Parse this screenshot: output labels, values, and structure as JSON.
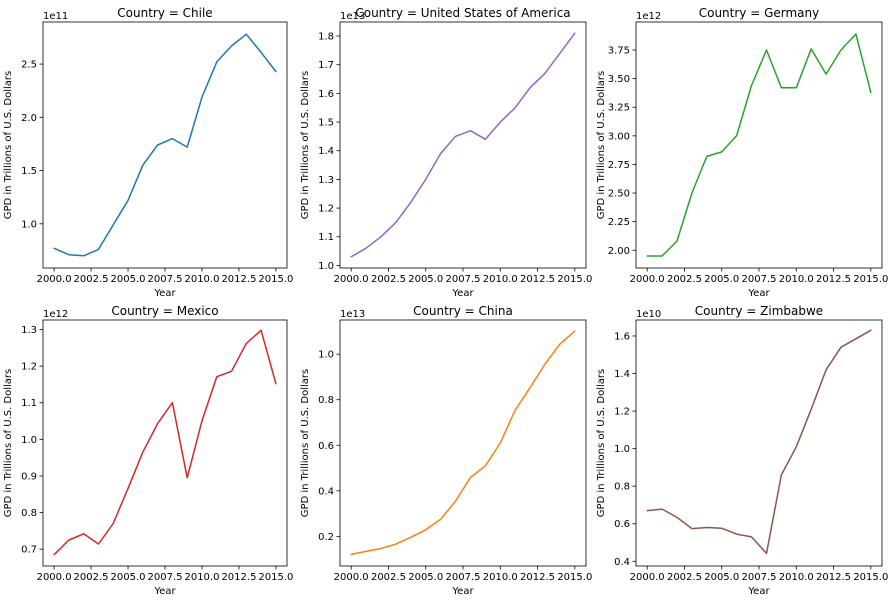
{
  "figure": {
    "background": "#ffffff"
  },
  "chart_data": [
    {
      "type": "line",
      "title": "Country = Chile",
      "xlabel": "Year",
      "ylabel": "GPD in Trillions of U.S. Dollars",
      "y_offset_label": "1e11",
      "color": "#1f77b4",
      "xlim": [
        1999.25,
        2015.75
      ],
      "ylim": [
        0.585,
        2.895
      ],
      "x_ticks": [
        2000,
        2002.5,
        2005,
        2007.5,
        2010,
        2012.5,
        2015
      ],
      "x_tick_labels": [
        "2000.0",
        "2002.5",
        "2005.0",
        "2007.5",
        "2010.0",
        "2012.5",
        "2015.0"
      ],
      "y_ticks": [
        1.0,
        1.5,
        2.0,
        2.5
      ],
      "y_tick_labels": [
        "1.0",
        "1.5",
        "2.0",
        "2.5"
      ],
      "x": [
        2000,
        2001,
        2002,
        2003,
        2004,
        2005,
        2006,
        2007,
        2008,
        2009,
        2010,
        2011,
        2012,
        2013,
        2014,
        2015
      ],
      "y": [
        0.77,
        0.71,
        0.7,
        0.76,
        0.99,
        1.22,
        1.55,
        1.74,
        1.8,
        1.72,
        2.19,
        2.52,
        2.67,
        2.78,
        2.61,
        2.43
      ]
    },
    {
      "type": "line",
      "title": "Country = United States of America",
      "xlabel": "Year",
      "ylabel": "GPD in Trillions of U.S. Dollars",
      "y_offset_label": "1e13",
      "color": "#9467bd",
      "xlim": [
        1999.25,
        2015.75
      ],
      "ylim": [
        0.991,
        1.849
      ],
      "x_ticks": [
        2000,
        2002.5,
        2005,
        2007.5,
        2010,
        2012.5,
        2015
      ],
      "x_tick_labels": [
        "2000.0",
        "2002.5",
        "2005.0",
        "2007.5",
        "2010.0",
        "2012.5",
        "2015.0"
      ],
      "y_ticks": [
        1.0,
        1.1,
        1.2,
        1.3,
        1.4,
        1.5,
        1.6,
        1.7,
        1.8
      ],
      "y_tick_labels": [
        "1.0",
        "1.1",
        "1.2",
        "1.3",
        "1.4",
        "1.5",
        "1.6",
        "1.7",
        "1.8"
      ],
      "x": [
        2000,
        2001,
        2002,
        2003,
        2004,
        2005,
        2006,
        2007,
        2008,
        2009,
        2010,
        2011,
        2012,
        2013,
        2014,
        2015
      ],
      "y": [
        1.03,
        1.06,
        1.1,
        1.15,
        1.22,
        1.3,
        1.39,
        1.45,
        1.47,
        1.44,
        1.5,
        1.55,
        1.62,
        1.67,
        1.74,
        1.81
      ]
    },
    {
      "type": "line",
      "title": "Country = Germany",
      "xlabel": "Year",
      "ylabel": "GPD in Trillions of U.S. Dollars",
      "y_offset_label": "1e12",
      "color": "#2ca02c",
      "xlim": [
        1999.25,
        2015.75
      ],
      "ylim": [
        1.845,
        3.995
      ],
      "x_ticks": [
        2000,
        2002.5,
        2005,
        2007.5,
        2010,
        2012.5,
        2015
      ],
      "x_tick_labels": [
        "2000.0",
        "2002.5",
        "2005.0",
        "2007.5",
        "2010.0",
        "2012.5",
        "2015.0"
      ],
      "y_ticks": [
        2.0,
        2.25,
        2.5,
        2.75,
        3.0,
        3.25,
        3.5,
        3.75
      ],
      "y_tick_labels": [
        "2.00",
        "2.25",
        "2.50",
        "2.75",
        "3.00",
        "3.25",
        "3.50",
        "3.75"
      ],
      "x": [
        2000,
        2001,
        2002,
        2003,
        2004,
        2005,
        2006,
        2007,
        2008,
        2009,
        2010,
        2011,
        2012,
        2013,
        2014,
        2015
      ],
      "y": [
        1.95,
        1.95,
        2.08,
        2.5,
        2.82,
        2.86,
        3.0,
        3.44,
        3.75,
        3.42,
        3.42,
        3.76,
        3.54,
        3.75,
        3.89,
        3.38
      ]
    },
    {
      "type": "line",
      "title": "Country = Mexico",
      "xlabel": "Year",
      "ylabel": "GPD in Trillions of U.S. Dollars",
      "y_offset_label": "1e12",
      "color": "#d62728",
      "xlim": [
        1999.25,
        2015.75
      ],
      "ylim": [
        0.654,
        1.326
      ],
      "x_ticks": [
        2000,
        2002.5,
        2005,
        2007.5,
        2010,
        2012.5,
        2015
      ],
      "x_tick_labels": [
        "2000.0",
        "2002.5",
        "2005.0",
        "2007.5",
        "2010.0",
        "2012.5",
        "2015.0"
      ],
      "y_ticks": [
        0.7,
        0.8,
        0.9,
        1.0,
        1.1,
        1.2,
        1.3
      ],
      "y_tick_labels": [
        "0.7",
        "0.8",
        "0.9",
        "1.0",
        "1.1",
        "1.2",
        "1.3"
      ],
      "x": [
        2000,
        2001,
        2002,
        2003,
        2004,
        2005,
        2006,
        2007,
        2008,
        2009,
        2010,
        2011,
        2012,
        2013,
        2014,
        2015
      ],
      "y": [
        0.685,
        0.725,
        0.742,
        0.714,
        0.77,
        0.866,
        0.965,
        1.043,
        1.1,
        0.895,
        1.051,
        1.171,
        1.186,
        1.262,
        1.298,
        1.152
      ]
    },
    {
      "type": "line",
      "title": "Country = China",
      "xlabel": "Year",
      "ylabel": "GPD in Trillions of U.S. Dollars",
      "y_offset_label": "1e13",
      "color": "#ff7f0e",
      "xlim": [
        1999.25,
        2015.75
      ],
      "ylim": [
        0.07,
        1.15
      ],
      "x_ticks": [
        2000,
        2002.5,
        2005,
        2007.5,
        2010,
        2012.5,
        2015
      ],
      "x_tick_labels": [
        "2000.0",
        "2002.5",
        "2005.0",
        "2007.5",
        "2010.0",
        "2012.5",
        "2015.0"
      ],
      "y_ticks": [
        0.2,
        0.4,
        0.6,
        0.8,
        1.0
      ],
      "y_tick_labels": [
        "0.2",
        "0.4",
        "0.6",
        "0.8",
        "1.0"
      ],
      "x": [
        2000,
        2001,
        2002,
        2003,
        2004,
        2005,
        2006,
        2007,
        2008,
        2009,
        2010,
        2011,
        2012,
        2013,
        2014,
        2015
      ],
      "y": [
        0.121,
        0.134,
        0.147,
        0.166,
        0.196,
        0.229,
        0.275,
        0.355,
        0.459,
        0.51,
        0.61,
        0.755,
        0.853,
        0.957,
        1.044,
        1.101
      ]
    },
    {
      "type": "line",
      "title": "Country = Zimbabwe",
      "xlabel": "Year",
      "ylabel": "GPD in Trillions of U.S. Dollars",
      "y_offset_label": "1e10",
      "color": "#8c564b",
      "xlim": [
        1999.25,
        2015.75
      ],
      "ylim": [
        0.375,
        1.685
      ],
      "x_ticks": [
        2000,
        2002.5,
        2005,
        2007.5,
        2010,
        2012.5,
        2015
      ],
      "x_tick_labels": [
        "2000.0",
        "2002.5",
        "2005.0",
        "2007.5",
        "2010.0",
        "2012.5",
        "2015.0"
      ],
      "y_ticks": [
        0.4,
        0.6,
        0.8,
        1.0,
        1.2,
        1.4,
        1.6
      ],
      "y_tick_labels": [
        "0.4",
        "0.6",
        "0.8",
        "1.0",
        "1.2",
        "1.4",
        "1.6"
      ],
      "x": [
        2000,
        2001,
        2002,
        2003,
        2004,
        2005,
        2006,
        2007,
        2008,
        2009,
        2010,
        2011,
        2012,
        2013,
        2014,
        2015
      ],
      "y": [
        0.67,
        0.678,
        0.634,
        0.574,
        0.58,
        0.576,
        0.545,
        0.53,
        0.442,
        0.86,
        1.01,
        1.21,
        1.42,
        1.54,
        1.585,
        1.63
      ]
    }
  ]
}
